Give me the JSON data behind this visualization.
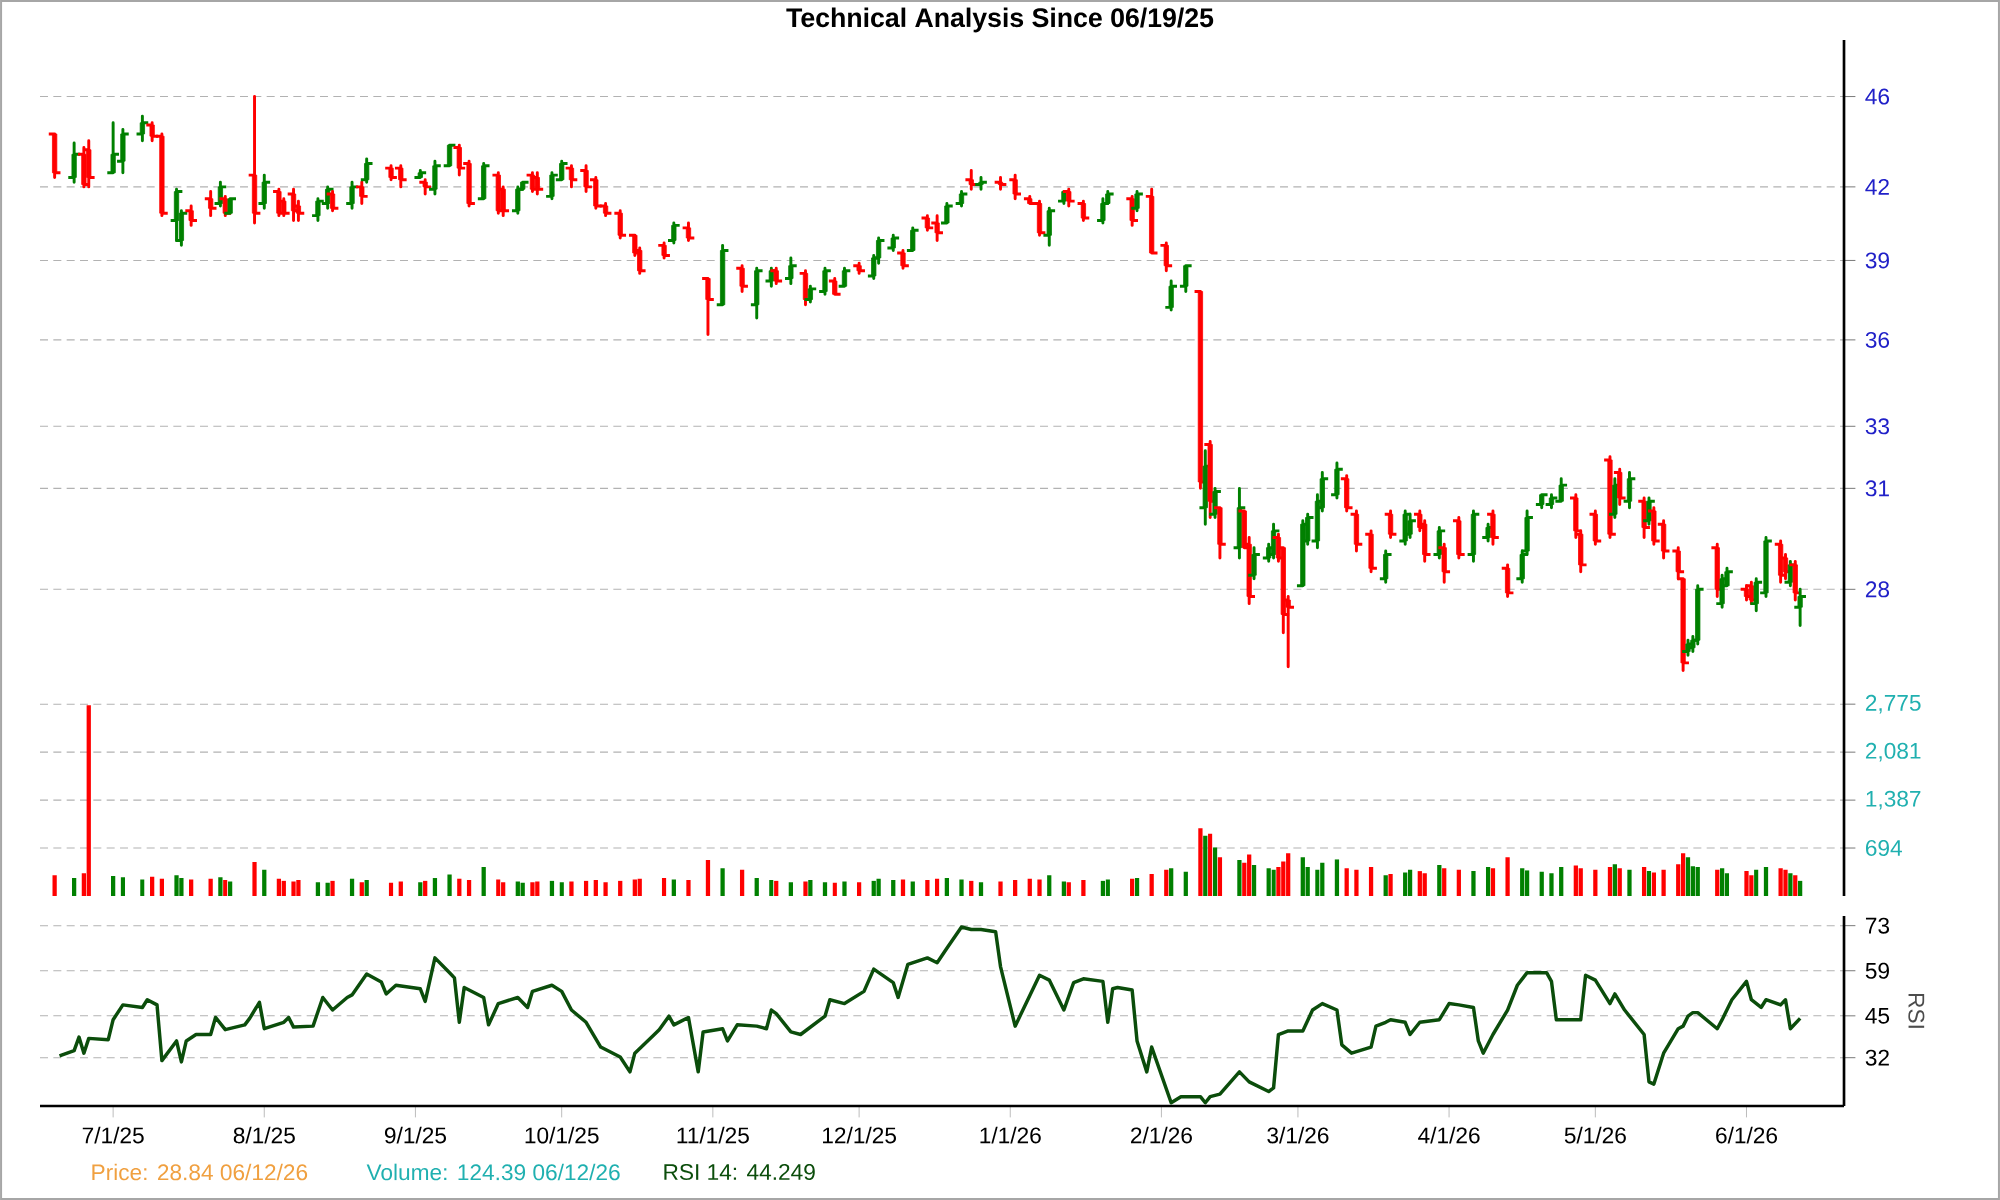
{
  "chart_data": [
    {
      "type": "candlestick",
      "title": "Technical Analysis Since 06/19/25",
      "log": true,
      "grid": "y",
      "tick_labels": "y",
      "xlim": [
        "2025-06-16",
        "2026-06-21"
      ],
      "ylim": [
        25.3,
        48.7
      ],
      "yticks": [
        28,
        31,
        33,
        36,
        39,
        42,
        46
      ],
      "x": [
        "2025-06-19",
        "2025-06-23",
        "2025-06-25",
        "2025-06-26",
        "2025-07-01",
        "2025-07-03",
        "2025-07-07",
        "2025-07-09",
        "2025-07-11",
        "2025-07-14",
        "2025-07-15",
        "2025-07-17",
        "2025-07-21",
        "2025-07-23",
        "2025-07-24",
        "2025-07-25",
        "2025-07-30",
        "2025-08-01",
        "2025-08-04",
        "2025-08-05",
        "2025-08-07",
        "2025-08-08",
        "2025-08-12",
        "2025-08-14",
        "2025-08-15",
        "2025-08-19",
        "2025-08-21",
        "2025-08-22",
        "2025-08-27",
        "2025-08-29",
        "2025-09-02",
        "2025-09-03",
        "2025-09-05",
        "2025-09-08",
        "2025-09-10",
        "2025-09-12",
        "2025-09-15",
        "2025-09-18",
        "2025-09-19",
        "2025-09-22",
        "2025-09-23",
        "2025-09-25",
        "2025-09-26",
        "2025-09-29",
        "2025-10-01",
        "2025-10-03",
        "2025-10-06",
        "2025-10-08",
        "2025-10-10",
        "2025-10-13",
        "2025-10-16",
        "2025-10-17",
        "2025-10-22",
        "2025-10-24",
        "2025-10-27",
        "2025-10-31",
        "2025-11-03",
        "2025-11-07",
        "2025-11-10",
        "2025-11-13",
        "2025-11-14",
        "2025-11-17",
        "2025-11-20",
        "2025-11-21",
        "2025-11-24",
        "2025-11-26",
        "2025-11-28",
        "2025-12-01",
        "2025-12-04",
        "2025-12-05",
        "2025-12-08",
        "2025-12-10",
        "2025-12-12",
        "2025-12-15",
        "2025-12-17",
        "2025-12-19",
        "2025-12-22",
        "2025-12-24",
        "2025-12-26",
        "2025-12-30",
        "2026-01-02",
        "2026-01-05",
        "2026-01-07",
        "2026-01-09",
        "2026-01-12",
        "2026-01-13",
        "2026-01-16",
        "2026-01-20",
        "2026-01-21",
        "2026-01-26",
        "2026-01-27",
        "2026-01-30",
        "2026-02-02",
        "2026-02-03",
        "2026-02-06",
        "2026-02-09",
        "2026-02-10",
        "2026-02-11",
        "2026-02-12",
        "2026-02-13",
        "2026-02-17",
        "2026-02-18",
        "2026-02-19",
        "2026-02-20",
        "2026-02-23",
        "2026-02-24",
        "2026-02-25",
        "2026-02-26",
        "2026-02-27",
        "2026-03-02",
        "2026-03-03",
        "2026-03-05",
        "2026-03-06",
        "2026-03-09",
        "2026-03-11",
        "2026-03-13",
        "2026-03-16",
        "2026-03-19",
        "2026-03-20",
        "2026-03-23",
        "2026-03-24",
        "2026-03-26",
        "2026-03-27",
        "2026-03-30",
        "2026-03-31",
        "2026-04-03",
        "2026-04-06",
        "2026-04-09",
        "2026-04-10",
        "2026-04-13",
        "2026-04-16",
        "2026-04-17",
        "2026-04-20",
        "2026-04-22",
        "2026-04-24",
        "2026-04-27",
        "2026-04-28",
        "2026-05-01",
        "2026-05-04",
        "2026-05-05",
        "2026-05-06",
        "2026-05-08",
        "2026-05-11",
        "2026-05-12",
        "2026-05-13",
        "2026-05-15",
        "2026-05-18",
        "2026-05-19",
        "2026-05-20",
        "2026-05-21",
        "2026-05-22",
        "2026-05-26",
        "2026-05-27",
        "2026-05-28",
        "2026-06-01",
        "2026-06-02",
        "2026-06-03",
        "2026-06-05",
        "2026-06-08",
        "2026-06-09",
        "2026-06-10",
        "2026-06-11",
        "2026-06-12"
      ],
      "ohlc": [
        [
          44.3,
          44.3,
          42.4,
          42.6
        ],
        [
          42.4,
          43.9,
          42.2,
          43.4
        ],
        [
          43.4,
          43.7,
          42.0,
          42.1
        ],
        [
          43.6,
          44.0,
          42.0,
          42.4
        ],
        [
          42.6,
          44.8,
          42.6,
          43.4
        ],
        [
          43.1,
          44.5,
          42.6,
          44.3
        ],
        [
          44.3,
          45.1,
          44.0,
          44.8
        ],
        [
          44.7,
          44.8,
          44.0,
          44.2
        ],
        [
          44.2,
          44.3,
          40.8,
          40.9
        ],
        [
          40.6,
          41.9,
          39.8,
          41.8
        ],
        [
          39.8,
          41.0,
          39.6,
          40.9
        ],
        [
          41.0,
          41.2,
          40.4,
          40.6
        ],
        [
          41.5,
          41.8,
          40.8,
          41.1
        ],
        [
          41.3,
          42.2,
          41.2,
          42.0
        ],
        [
          41.5,
          41.6,
          40.8,
          40.9
        ],
        [
          40.9,
          41.5,
          40.9,
          41.5
        ],
        [
          42.5,
          46.0,
          40.5,
          40.9
        ],
        [
          41.3,
          42.5,
          41.1,
          42.2
        ],
        [
          41.8,
          41.9,
          40.8,
          40.9
        ],
        [
          41.4,
          41.5,
          40.8,
          40.9
        ],
        [
          41.7,
          41.9,
          40.6,
          41.0
        ],
        [
          41.2,
          41.4,
          40.6,
          40.9
        ],
        [
          40.8,
          41.5,
          40.6,
          41.4
        ],
        [
          41.3,
          42.0,
          41.1,
          41.9
        ],
        [
          41.7,
          41.8,
          41.0,
          41.1
        ],
        [
          41.3,
          42.2,
          41.1,
          42.0
        ],
        [
          42.0,
          42.2,
          41.3,
          41.6
        ],
        [
          42.3,
          43.2,
          42.2,
          43.0
        ],
        [
          42.8,
          42.9,
          42.3,
          42.4
        ],
        [
          42.8,
          42.9,
          42.0,
          42.3
        ],
        [
          42.4,
          42.7,
          42.4,
          42.6
        ],
        [
          42.2,
          42.3,
          41.7,
          42.0
        ],
        [
          41.9,
          43.1,
          41.7,
          42.9
        ],
        [
          42.9,
          43.8,
          42.9,
          43.8
        ],
        [
          43.7,
          43.8,
          42.5,
          42.8
        ],
        [
          43.0,
          43.1,
          41.2,
          41.3
        ],
        [
          41.5,
          43.0,
          41.5,
          42.9
        ],
        [
          42.5,
          42.6,
          40.9,
          41.0
        ],
        [
          41.9,
          42.0,
          40.8,
          41.0
        ],
        [
          41.0,
          42.0,
          40.9,
          41.9
        ],
        [
          41.9,
          42.2,
          41.9,
          42.2
        ],
        [
          42.5,
          42.6,
          41.8,
          41.9
        ],
        [
          42.4,
          42.6,
          41.7,
          41.9
        ],
        [
          41.6,
          42.6,
          41.5,
          42.5
        ],
        [
          42.3,
          43.1,
          42.3,
          43.0
        ],
        [
          42.8,
          42.9,
          42.0,
          42.3
        ],
        [
          42.7,
          42.9,
          41.8,
          42.0
        ],
        [
          42.3,
          42.4,
          41.1,
          41.2
        ],
        [
          41.2,
          41.3,
          40.8,
          40.9
        ],
        [
          40.9,
          41.0,
          39.9,
          40.0
        ],
        [
          40.0,
          40.0,
          39.2,
          39.3
        ],
        [
          39.4,
          39.5,
          38.5,
          38.6
        ],
        [
          39.6,
          39.7,
          39.1,
          39.2
        ],
        [
          39.8,
          40.5,
          39.7,
          40.4
        ],
        [
          40.3,
          40.5,
          39.8,
          39.9
        ],
        [
          38.3,
          38.3,
          36.2,
          37.5
        ],
        [
          37.3,
          39.6,
          37.3,
          39.4
        ],
        [
          38.7,
          38.8,
          37.8,
          38.0
        ],
        [
          37.3,
          38.7,
          36.8,
          38.6
        ],
        [
          38.2,
          38.7,
          38.0,
          38.6
        ],
        [
          38.6,
          38.7,
          38.1,
          38.2
        ],
        [
          38.3,
          39.1,
          38.1,
          38.8
        ],
        [
          38.5,
          38.6,
          37.3,
          37.5
        ],
        [
          37.5,
          38.0,
          37.4,
          37.9
        ],
        [
          37.8,
          38.7,
          37.7,
          38.6
        ],
        [
          38.2,
          38.3,
          37.7,
          37.7
        ],
        [
          38.0,
          38.7,
          38.0,
          38.6
        ],
        [
          38.8,
          38.9,
          38.5,
          38.6
        ],
        [
          38.4,
          39.2,
          38.3,
          39.1
        ],
        [
          39.1,
          39.9,
          38.9,
          39.8
        ],
        [
          39.5,
          40.0,
          39.4,
          39.9
        ],
        [
          39.3,
          39.4,
          38.7,
          38.8
        ],
        [
          39.4,
          40.3,
          39.4,
          40.2
        ],
        [
          40.7,
          40.8,
          40.2,
          40.3
        ],
        [
          40.5,
          40.8,
          39.8,
          40.1
        ],
        [
          40.5,
          41.3,
          40.5,
          41.2
        ],
        [
          41.3,
          41.8,
          41.2,
          41.7
        ],
        [
          42.3,
          42.7,
          41.9,
          42.1
        ],
        [
          42.1,
          42.4,
          41.9,
          42.2
        ],
        [
          42.2,
          42.4,
          41.9,
          42.1
        ],
        [
          42.3,
          42.5,
          41.5,
          41.7
        ],
        [
          41.5,
          41.6,
          41.3,
          41.3
        ],
        [
          41.3,
          41.4,
          40.0,
          40.1
        ],
        [
          40.0,
          41.1,
          39.6,
          41.0
        ],
        [
          41.4,
          41.8,
          41.3,
          41.8
        ],
        [
          41.8,
          41.9,
          41.2,
          41.4
        ],
        [
          41.3,
          41.4,
          40.6,
          40.7
        ],
        [
          40.6,
          41.5,
          40.5,
          41.3
        ],
        [
          41.3,
          41.8,
          41.3,
          41.7
        ],
        [
          41.5,
          41.6,
          40.4,
          40.6
        ],
        [
          41.1,
          41.8,
          41.0,
          41.7
        ],
        [
          41.6,
          41.9,
          39.3,
          39.3
        ],
        [
          39.6,
          39.7,
          38.6,
          38.8
        ],
        [
          37.2,
          38.2,
          37.1,
          38.0
        ],
        [
          38.0,
          38.8,
          37.8,
          38.8
        ],
        [
          37.8,
          37.8,
          31.0,
          31.2
        ],
        [
          30.4,
          32.2,
          29.9,
          31.7
        ],
        [
          32.4,
          32.5,
          30.1,
          30.6
        ],
        [
          30.2,
          31.0,
          30.1,
          30.9
        ],
        [
          30.4,
          30.4,
          28.9,
          29.3
        ],
        [
          29.2,
          31.0,
          28.9,
          30.4
        ],
        [
          30.3,
          30.3,
          29.2,
          29.2
        ],
        [
          29.3,
          29.5,
          27.6,
          27.8
        ],
        [
          28.4,
          29.2,
          28.3,
          29.0
        ],
        [
          28.9,
          29.3,
          28.8,
          29.2
        ],
        [
          29.0,
          29.9,
          28.9,
          29.7
        ],
        [
          29.5,
          29.6,
          28.8,
          28.9
        ],
        [
          29.2,
          29.2,
          26.8,
          27.3
        ],
        [
          27.7,
          27.8,
          25.9,
          27.5
        ],
        [
          28.1,
          30.0,
          28.1,
          29.9
        ],
        [
          29.4,
          30.2,
          29.3,
          30.1
        ],
        [
          29.4,
          30.8,
          29.2,
          30.6
        ],
        [
          30.4,
          31.5,
          30.3,
          31.3
        ],
        [
          30.8,
          31.8,
          30.7,
          31.6
        ],
        [
          31.3,
          31.4,
          30.3,
          30.4
        ],
        [
          30.2,
          30.3,
          29.1,
          29.3
        ],
        [
          29.6,
          29.7,
          28.5,
          28.6
        ],
        [
          28.3,
          29.1,
          28.2,
          29.0
        ],
        [
          30.2,
          30.3,
          29.5,
          29.6
        ],
        [
          29.4,
          30.3,
          29.3,
          30.2
        ],
        [
          29.6,
          30.2,
          29.5,
          30.0
        ],
        [
          30.2,
          30.3,
          29.7,
          29.8
        ],
        [
          29.9,
          30.0,
          28.8,
          29.0
        ],
        [
          29.0,
          29.8,
          28.9,
          29.7
        ],
        [
          29.2,
          29.3,
          28.2,
          28.5
        ],
        [
          30.0,
          30.1,
          28.9,
          29.0
        ],
        [
          29.0,
          30.3,
          28.8,
          30.2
        ],
        [
          29.5,
          29.9,
          29.4,
          29.8
        ],
        [
          30.2,
          30.3,
          29.3,
          29.5
        ],
        [
          28.6,
          28.7,
          27.8,
          27.9
        ],
        [
          28.3,
          29.1,
          28.2,
          29.0
        ],
        [
          29.1,
          30.3,
          29.0,
          30.1
        ],
        [
          30.5,
          30.8,
          30.4,
          30.8
        ],
        [
          30.5,
          30.8,
          30.4,
          30.7
        ],
        [
          30.6,
          31.3,
          30.6,
          31.1
        ],
        [
          30.7,
          30.8,
          29.5,
          29.7
        ],
        [
          29.6,
          29.7,
          28.5,
          28.7
        ],
        [
          30.2,
          30.3,
          29.3,
          29.4
        ],
        [
          31.9,
          32.0,
          29.5,
          29.6
        ],
        [
          30.2,
          31.3,
          30.1,
          31.1
        ],
        [
          31.5,
          31.6,
          30.5,
          30.7
        ],
        [
          30.6,
          31.5,
          30.4,
          31.3
        ],
        [
          30.6,
          30.7,
          29.5,
          29.8
        ],
        [
          30.0,
          30.7,
          29.9,
          30.6
        ],
        [
          30.3,
          30.4,
          29.3,
          29.4
        ],
        [
          29.9,
          30.0,
          28.9,
          29.1
        ],
        [
          29.1,
          29.2,
          28.3,
          28.5
        ],
        [
          28.3,
          28.3,
          25.8,
          26.0
        ],
        [
          26.3,
          26.6,
          26.2,
          26.5
        ],
        [
          26.4,
          26.7,
          26.3,
          26.6
        ],
        [
          26.6,
          28.1,
          26.5,
          28.0
        ],
        [
          29.2,
          29.3,
          27.8,
          28.0
        ],
        [
          27.6,
          28.4,
          27.5,
          28.3
        ],
        [
          28.1,
          28.6,
          28.1,
          28.5
        ],
        [
          28.0,
          28.1,
          27.7,
          27.8
        ],
        [
          28.1,
          28.2,
          27.6,
          27.7
        ],
        [
          27.6,
          28.3,
          27.4,
          28.2
        ],
        [
          27.9,
          29.5,
          27.8,
          29.4
        ],
        [
          29.3,
          29.4,
          28.2,
          28.4
        ],
        [
          28.9,
          29.0,
          28.3,
          28.5
        ],
        [
          28.2,
          28.8,
          28.1,
          28.7
        ],
        [
          28.7,
          28.8,
          27.7,
          27.9
        ],
        [
          27.5,
          28.0,
          27.0,
          27.8
        ]
      ],
      "colors": [
        "#ff0000",
        "#008000",
        "#ff0000",
        "#ff0000",
        "#008000",
        "#008000",
        "#008000",
        "#ff0000",
        "#ff0000",
        "#008000",
        "#008000",
        "#ff0000",
        "#ff0000",
        "#008000",
        "#ff0000",
        "#008000",
        "#ff0000",
        "#008000",
        "#ff0000",
        "#ff0000",
        "#ff0000",
        "#ff0000",
        "#008000",
        "#008000",
        "#ff0000",
        "#008000",
        "#ff0000",
        "#008000",
        "#ff0000",
        "#ff0000",
        "#008000",
        "#ff0000",
        "#008000",
        "#008000",
        "#ff0000",
        "#ff0000",
        "#008000",
        "#ff0000",
        "#ff0000",
        "#008000",
        "#008000",
        "#ff0000",
        "#ff0000",
        "#008000",
        "#008000",
        "#ff0000",
        "#ff0000",
        "#ff0000",
        "#ff0000",
        "#ff0000",
        "#ff0000",
        "#ff0000",
        "#ff0000",
        "#008000",
        "#ff0000",
        "#ff0000",
        "#008000",
        "#ff0000",
        "#008000",
        "#008000",
        "#ff0000",
        "#008000",
        "#ff0000",
        "#008000",
        "#008000",
        "#ff0000",
        "#008000",
        "#ff0000",
        "#008000",
        "#008000",
        "#008000",
        "#ff0000",
        "#008000",
        "#ff0000",
        "#ff0000",
        "#008000",
        "#008000",
        "#ff0000",
        "#008000",
        "#ff0000",
        "#ff0000",
        "#ff0000",
        "#ff0000",
        "#008000",
        "#008000",
        "#ff0000",
        "#ff0000",
        "#008000",
        "#008000",
        "#ff0000",
        "#008000",
        "#ff0000",
        "#ff0000",
        "#008000",
        "#008000",
        "#ff0000",
        "#008000",
        "#ff0000",
        "#008000",
        "#ff0000",
        "#008000",
        "#ff0000",
        "#ff0000",
        "#008000",
        "#008000",
        "#008000",
        "#ff0000",
        "#ff0000",
        "#ff0000",
        "#008000",
        "#008000",
        "#008000",
        "#008000",
        "#008000",
        "#ff0000",
        "#ff0000",
        "#ff0000",
        "#008000",
        "#ff0000",
        "#008000",
        "#008000",
        "#ff0000",
        "#ff0000",
        "#008000",
        "#ff0000",
        "#ff0000",
        "#008000",
        "#008000",
        "#ff0000",
        "#ff0000",
        "#008000",
        "#008000",
        "#008000",
        "#008000",
        "#008000",
        "#ff0000",
        "#ff0000",
        "#ff0000",
        "#ff0000",
        "#008000",
        "#ff0000",
        "#008000",
        "#ff0000",
        "#008000",
        "#ff0000",
        "#ff0000",
        "#ff0000",
        "#ff0000",
        "#008000",
        "#008000",
        "#008000",
        "#ff0000",
        "#008000",
        "#008000",
        "#ff0000",
        "#ff0000",
        "#008000",
        "#008000",
        "#ff0000",
        "#ff0000",
        "#008000",
        "#ff0000",
        "#008000"
      ]
    },
    {
      "type": "bar",
      "grid": "y",
      "tick_labels": "y",
      "xlim": [
        "2025-06-16",
        "2026-06-21"
      ],
      "ylim": [
        0,
        2980
      ],
      "yticks": [
        694,
        {
          "value": 1387,
          "label": "1,387"
        },
        {
          "value": 2081,
          "label": "2,081"
        },
        {
          "value": 2775,
          "label": "2,775"
        }
      ],
      "x": [
        "2025-06-19",
        "2025-06-23",
        "2025-06-25",
        "2025-06-26",
        "2025-07-01",
        "2025-07-03",
        "2025-07-07",
        "2025-07-09",
        "2025-07-11",
        "2025-07-14",
        "2025-07-15",
        "2025-07-17",
        "2025-07-21",
        "2025-07-23",
        "2025-07-24",
        "2025-07-25",
        "2025-07-30",
        "2025-08-01",
        "2025-08-04",
        "2025-08-05",
        "2025-08-07",
        "2025-08-08",
        "2025-08-12",
        "2025-08-14",
        "2025-08-15",
        "2025-08-19",
        "2025-08-21",
        "2025-08-22",
        "2025-08-27",
        "2025-08-29",
        "2025-09-02",
        "2025-09-03",
        "2025-09-05",
        "2025-09-08",
        "2025-09-10",
        "2025-09-12",
        "2025-09-15",
        "2025-09-18",
        "2025-09-19",
        "2025-09-22",
        "2025-09-23",
        "2025-09-25",
        "2025-09-26",
        "2025-09-29",
        "2025-10-01",
        "2025-10-03",
        "2025-10-06",
        "2025-10-08",
        "2025-10-10",
        "2025-10-13",
        "2025-10-16",
        "2025-10-17",
        "2025-10-22",
        "2025-10-24",
        "2025-10-27",
        "2025-10-31",
        "2025-11-03",
        "2025-11-07",
        "2025-11-10",
        "2025-11-13",
        "2025-11-14",
        "2025-11-17",
        "2025-11-20",
        "2025-11-21",
        "2025-11-24",
        "2025-11-26",
        "2025-11-28",
        "2025-12-01",
        "2025-12-04",
        "2025-12-05",
        "2025-12-08",
        "2025-12-10",
        "2025-12-12",
        "2025-12-15",
        "2025-12-17",
        "2025-12-19",
        "2025-12-22",
        "2025-12-24",
        "2025-12-26",
        "2025-12-30",
        "2026-01-02",
        "2026-01-05",
        "2026-01-07",
        "2026-01-09",
        "2026-01-12",
        "2026-01-13",
        "2026-01-16",
        "2026-01-20",
        "2026-01-21",
        "2026-01-26",
        "2026-01-27",
        "2026-01-30",
        "2026-02-02",
        "2026-02-03",
        "2026-02-06",
        "2026-02-09",
        "2026-02-10",
        "2026-02-11",
        "2026-02-12",
        "2026-02-13",
        "2026-02-17",
        "2026-02-18",
        "2026-02-19",
        "2026-02-20",
        "2026-02-23",
        "2026-02-24",
        "2026-02-25",
        "2026-02-26",
        "2026-02-27",
        "2026-03-02",
        "2026-03-03",
        "2026-03-05",
        "2026-03-06",
        "2026-03-09",
        "2026-03-11",
        "2026-03-13",
        "2026-03-16",
        "2026-03-19",
        "2026-03-20",
        "2026-03-23",
        "2026-03-24",
        "2026-03-26",
        "2026-03-27",
        "2026-03-30",
        "2026-03-31",
        "2026-04-03",
        "2026-04-06",
        "2026-04-09",
        "2026-04-10",
        "2026-04-13",
        "2026-04-16",
        "2026-04-17",
        "2026-04-20",
        "2026-04-22",
        "2026-04-24",
        "2026-04-27",
        "2026-04-28",
        "2026-05-01",
        "2026-05-04",
        "2026-05-05",
        "2026-05-06",
        "2026-05-08",
        "2026-05-11",
        "2026-05-12",
        "2026-05-13",
        "2026-05-15",
        "2026-05-18",
        "2026-05-19",
        "2026-05-20",
        "2026-05-21",
        "2026-05-22",
        "2026-05-26",
        "2026-05-27",
        "2026-05-28",
        "2026-06-01",
        "2026-06-02",
        "2026-06-03",
        "2026-06-05",
        "2026-06-08",
        "2026-06-09",
        "2026-06-10",
        "2026-06-11",
        "2026-06-12"
      ],
      "values": [
        300,
        260,
        330,
        2760,
        290,
        270,
        240,
        280,
        250,
        300,
        260,
        240,
        250,
        270,
        230,
        210,
        490,
        380,
        250,
        220,
        210,
        230,
        200,
        190,
        220,
        250,
        200,
        230,
        190,
        210,
        200,
        220,
        260,
        310,
        250,
        230,
        420,
        240,
        200,
        210,
        190,
        200,
        210,
        220,
        200,
        210,
        220,
        230,
        200,
        220,
        240,
        250,
        260,
        240,
        230,
        520,
        400,
        380,
        260,
        230,
        220,
        200,
        210,
        230,
        200,
        190,
        210,
        200,
        220,
        250,
        230,
        240,
        210,
        230,
        250,
        260,
        240,
        220,
        200,
        210,
        230,
        250,
        240,
        300,
        210,
        200,
        230,
        220,
        240,
        250,
        260,
        320,
        380,
        400,
        350,
        980,
        870,
        900,
        700,
        560,
        520,
        480,
        600,
        450,
        400,
        380,
        420,
        500,
        620,
        560,
        420,
        380,
        480,
        530,
        400,
        380,
        420,
        300,
        320,
        340,
        380,
        360,
        330,
        450,
        400,
        380,
        360,
        420,
        400,
        560,
        400,
        370,
        350,
        330,
        420,
        440,
        400,
        380,
        420,
        460,
        400,
        380,
        420,
        360,
        340,
        380,
        460,
        620,
        560,
        430,
        420,
        380,
        400,
        330,
        360,
        300,
        380,
        420,
        400,
        380,
        330,
        300,
        220
      ],
      "colors": [
        "#ff0000",
        "#008000",
        "#ff0000",
        "#ff0000",
        "#008000",
        "#008000",
        "#008000",
        "#ff0000",
        "#ff0000",
        "#008000",
        "#008000",
        "#ff0000",
        "#ff0000",
        "#008000",
        "#ff0000",
        "#008000",
        "#ff0000",
        "#008000",
        "#ff0000",
        "#ff0000",
        "#ff0000",
        "#ff0000",
        "#008000",
        "#008000",
        "#ff0000",
        "#008000",
        "#ff0000",
        "#008000",
        "#ff0000",
        "#ff0000",
        "#008000",
        "#ff0000",
        "#008000",
        "#008000",
        "#ff0000",
        "#ff0000",
        "#008000",
        "#ff0000",
        "#ff0000",
        "#008000",
        "#008000",
        "#ff0000",
        "#ff0000",
        "#008000",
        "#008000",
        "#ff0000",
        "#ff0000",
        "#ff0000",
        "#ff0000",
        "#ff0000",
        "#ff0000",
        "#ff0000",
        "#ff0000",
        "#008000",
        "#ff0000",
        "#ff0000",
        "#008000",
        "#ff0000",
        "#008000",
        "#008000",
        "#ff0000",
        "#008000",
        "#ff0000",
        "#008000",
        "#008000",
        "#ff0000",
        "#008000",
        "#ff0000",
        "#008000",
        "#008000",
        "#008000",
        "#ff0000",
        "#008000",
        "#ff0000",
        "#ff0000",
        "#008000",
        "#008000",
        "#ff0000",
        "#008000",
        "#ff0000",
        "#ff0000",
        "#ff0000",
        "#ff0000",
        "#008000",
        "#008000",
        "#ff0000",
        "#ff0000",
        "#008000",
        "#008000",
        "#ff0000",
        "#008000",
        "#ff0000",
        "#ff0000",
        "#008000",
        "#008000",
        "#ff0000",
        "#008000",
        "#ff0000",
        "#008000",
        "#ff0000",
        "#008000",
        "#ff0000",
        "#ff0000",
        "#008000",
        "#008000",
        "#008000",
        "#ff0000",
        "#ff0000",
        "#ff0000",
        "#008000",
        "#008000",
        "#008000",
        "#008000",
        "#008000",
        "#ff0000",
        "#ff0000",
        "#ff0000",
        "#008000",
        "#ff0000",
        "#008000",
        "#008000",
        "#ff0000",
        "#ff0000",
        "#008000",
        "#ff0000",
        "#ff0000",
        "#008000",
        "#008000",
        "#ff0000",
        "#ff0000",
        "#008000",
        "#008000",
        "#008000",
        "#008000",
        "#008000",
        "#ff0000",
        "#ff0000",
        "#ff0000",
        "#ff0000",
        "#008000",
        "#ff0000",
        "#008000",
        "#ff0000",
        "#008000",
        "#ff0000",
        "#ff0000",
        "#ff0000",
        "#ff0000",
        "#008000",
        "#008000",
        "#008000",
        "#ff0000",
        "#008000",
        "#008000",
        "#ff0000",
        "#ff0000",
        "#008000",
        "#008000",
        "#ff0000",
        "#ff0000",
        "#008000",
        "#ff0000",
        "#008000"
      ]
    },
    {
      "type": "line",
      "ylabel": "RSI",
      "color": "#0b4d0b",
      "grid": "y",
      "xlim": [
        "2025-06-16",
        "2026-06-21"
      ],
      "ylim": [
        17,
        76
      ],
      "yticks": [
        32,
        45,
        59,
        73
      ],
      "xticks": [
        {
          "value": "2025-07-01",
          "label": "7/1/25"
        },
        {
          "value": "2025-08-01",
          "label": "8/1/25"
        },
        {
          "value": "2025-09-01",
          "label": "9/1/25"
        },
        {
          "value": "2025-10-01",
          "label": "10/1/25"
        },
        {
          "value": "2025-11-01",
          "label": "11/1/25"
        },
        {
          "value": "2025-12-01",
          "label": "12/1/25"
        },
        {
          "value": "2026-01-01",
          "label": "1/1/26"
        },
        {
          "value": "2026-02-01",
          "label": "2/1/26"
        },
        {
          "value": "2026-03-01",
          "label": "3/1/26"
        },
        {
          "value": "2026-04-01",
          "label": "4/1/26"
        },
        {
          "value": "2026-05-01",
          "label": "5/1/26"
        },
        {
          "value": "2026-06-01",
          "label": "6/1/26"
        }
      ],
      "x": [
        "2025-06-20",
        "2025-06-23",
        "2025-06-24",
        "2025-06-25",
        "2025-06-26",
        "2025-06-30",
        "2025-07-01",
        "2025-07-03",
        "2025-07-07",
        "2025-07-08",
        "2025-07-10",
        "2025-07-11",
        "2025-07-14",
        "2025-07-15",
        "2025-07-16",
        "2025-07-18",
        "2025-07-21",
        "2025-07-22",
        "2025-07-24",
        "2025-07-28",
        "2025-07-29",
        "2025-07-31",
        "2025-08-01",
        "2025-08-05",
        "2025-08-06",
        "2025-08-07",
        "2025-08-11",
        "2025-08-13",
        "2025-08-15",
        "2025-08-18",
        "2025-08-19",
        "2025-08-22",
        "2025-08-25",
        "2025-08-26",
        "2025-08-28",
        "2025-09-02",
        "2025-09-03",
        "2025-09-05",
        "2025-09-08",
        "2025-09-09",
        "2025-09-10",
        "2025-09-11",
        "2025-09-15",
        "2025-09-16",
        "2025-09-18",
        "2025-09-22",
        "2025-09-24",
        "2025-09-25",
        "2025-09-29",
        "2025-10-01",
        "2025-10-03",
        "2025-10-06",
        "2025-10-09",
        "2025-10-13",
        "2025-10-15",
        "2025-10-16",
        "2025-10-20",
        "2025-10-21",
        "2025-10-23",
        "2025-10-24",
        "2025-10-27",
        "2025-10-29",
        "2025-10-30",
        "2025-11-03",
        "2025-11-04",
        "2025-11-06",
        "2025-11-10",
        "2025-11-12",
        "2025-11-13",
        "2025-11-14",
        "2025-11-17",
        "2025-11-19",
        "2025-11-24",
        "2025-11-25",
        "2025-11-28",
        "2025-12-02",
        "2025-12-04",
        "2025-12-08",
        "2025-12-09",
        "2025-12-11",
        "2025-12-15",
        "2025-12-17",
        "2025-12-19",
        "2025-12-22",
        "2025-12-24",
        "2025-12-26",
        "2025-12-29",
        "2025-12-30",
        "2026-01-02",
        "2026-01-07",
        "2026-01-09",
        "2026-01-12",
        "2026-01-14",
        "2026-01-16",
        "2026-01-20",
        "2026-01-21",
        "2026-01-22",
        "2026-01-23",
        "2026-01-26",
        "2026-01-27",
        "2026-01-29",
        "2026-01-30",
        "2026-02-03",
        "2026-02-05",
        "2026-02-09",
        "2026-02-10",
        "2026-02-11",
        "2026-02-13",
        "2026-02-17",
        "2026-02-19",
        "2026-02-23",
        "2026-02-24",
        "2026-02-25",
        "2026-02-27",
        "2026-03-02",
        "2026-03-04",
        "2026-03-06",
        "2026-03-09",
        "2026-03-10",
        "2026-03-12",
        "2026-03-16",
        "2026-03-17",
        "2026-03-19",
        "2026-03-20",
        "2026-03-23",
        "2026-03-24",
        "2026-03-26",
        "2026-03-30",
        "2026-04-01",
        "2026-04-03",
        "2026-04-06",
        "2026-04-07",
        "2026-04-08",
        "2026-04-10",
        "2026-04-13",
        "2026-04-15",
        "2026-04-17",
        "2026-04-21",
        "2026-04-22",
        "2026-04-23",
        "2026-04-27",
        "2026-04-28",
        "2026-04-29",
        "2026-05-01",
        "2026-05-04",
        "2026-05-05",
        "2026-05-07",
        "2026-05-11",
        "2026-05-12",
        "2026-05-13",
        "2026-05-15",
        "2026-05-18",
        "2026-05-19",
        "2026-05-20",
        "2026-05-21",
        "2026-05-22",
        "2026-05-26",
        "2026-05-27",
        "2026-05-29",
        "2026-06-01",
        "2026-06-02",
        "2026-06-04",
        "2026-06-05",
        "2026-06-08",
        "2026-06-09",
        "2026-06-10",
        "2026-06-12"
      ],
      "values": [
        32.6,
        34.2,
        38.4,
        33.4,
        38.0,
        37.6,
        43.8,
        48.4,
        47.6,
        50.0,
        48.4,
        31.1,
        37.2,
        30.7,
        37.2,
        39.2,
        39.2,
        44.5,
        40.7,
        42.2,
        44.2,
        49.2,
        41.0,
        43.0,
        44.5,
        41.5,
        41.8,
        50.7,
        46.8,
        50.7,
        51.5,
        58.0,
        55.5,
        51.8,
        54.5,
        53.4,
        49.5,
        63.0,
        58.4,
        56.8,
        43.0,
        53.8,
        50.7,
        42.2,
        48.8,
        50.7,
        47.6,
        52.6,
        54.5,
        52.6,
        46.8,
        43.0,
        35.3,
        32.2,
        27.6,
        33.4,
        39.2,
        40.7,
        44.9,
        42.2,
        44.5,
        27.6,
        40.0,
        41.0,
        37.2,
        42.2,
        41.8,
        41.0,
        46.8,
        45.7,
        40.0,
        39.2,
        44.9,
        50.0,
        48.8,
        52.6,
        59.5,
        55.3,
        50.7,
        61.0,
        63.0,
        61.5,
        66.0,
        72.6,
        71.8,
        71.8,
        71.1,
        60.3,
        41.8,
        57.6,
        56.1,
        46.8,
        55.3,
        56.5,
        55.7,
        43.0,
        53.4,
        53.8,
        53.0,
        37.2,
        27.6,
        35.3,
        18.0,
        19.9,
        19.9,
        18.0,
        19.9,
        20.7,
        27.6,
        24.5,
        21.5,
        22.6,
        39.2,
        40.3,
        40.3,
        46.8,
        48.8,
        46.8,
        36.0,
        33.4,
        35.3,
        41.8,
        43.0,
        43.8,
        43.0,
        39.2,
        43.0,
        43.8,
        48.8,
        48.4,
        47.6,
        37.2,
        33.4,
        39.2,
        46.8,
        54.5,
        58.4,
        58.4,
        55.7,
        43.8,
        43.8,
        43.8,
        57.6,
        56.1,
        48.8,
        51.8,
        46.8,
        39.2,
        24.5,
        23.8,
        33.4,
        41.0,
        41.8,
        44.9,
        46.0,
        46.0,
        41.0,
        43.8,
        50.0,
        55.7,
        50.0,
        47.6,
        50.0,
        48.4,
        50.0,
        41.0,
        44.2
      ],
      "annotations": [
        "Price: 28.84  06/12/26",
        "Volume: 124.39  06/12/26",
        "RSI 14: 44.249"
      ]
    }
  ]
}
